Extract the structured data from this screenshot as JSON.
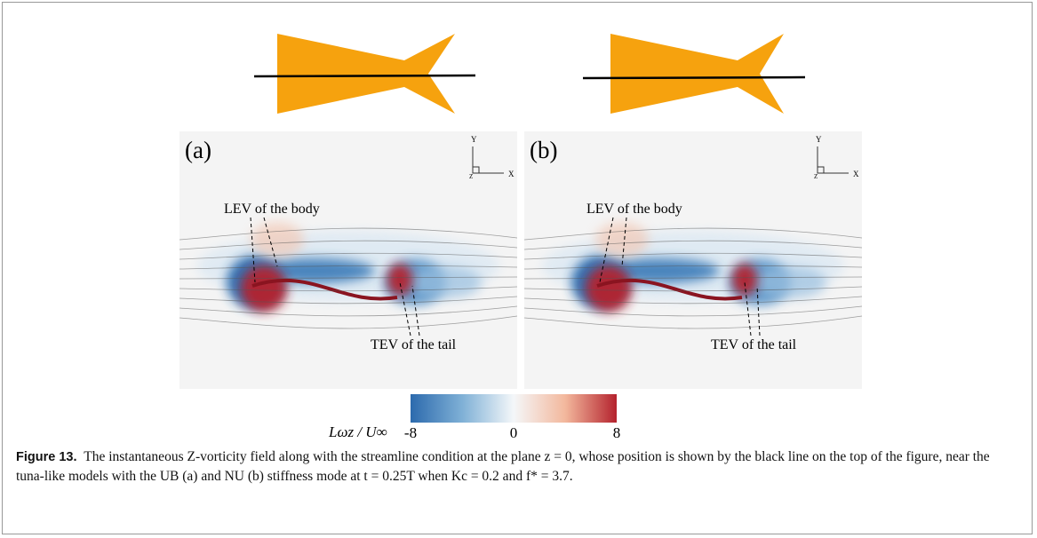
{
  "figure": {
    "panels": [
      {
        "label": "(a)",
        "lev": "LEV of the body",
        "tev": "TEV of the tail",
        "axis_y": "Y",
        "axis_x": "X",
        "axis_z": "Z"
      },
      {
        "label": "(b)",
        "lev": "LEV of the body",
        "tev": "TEV of the tail",
        "axis_y": "Y",
        "axis_x": "X",
        "axis_z": "Z"
      }
    ],
    "colorbar": {
      "label": "Lωz / U∞",
      "min": -8,
      "max": 8,
      "ticks": [
        -8,
        0,
        8
      ],
      "colors": [
        "#2c6aad",
        "#7fb0d6",
        "#f4f7f9",
        "#f3b89d",
        "#b4222d"
      ]
    },
    "caption": {
      "label": "Figure 13.",
      "text": "The instantaneous Z-vorticity field along with the streamline condition at the plane z = 0, whose position is shown by the black line on the top of the figure, near the tuna-like models with the UB (a) and NU (b) stiffness mode at t = 0.25T when Kc = 0.2 and f* = 3.7."
    }
  }
}
